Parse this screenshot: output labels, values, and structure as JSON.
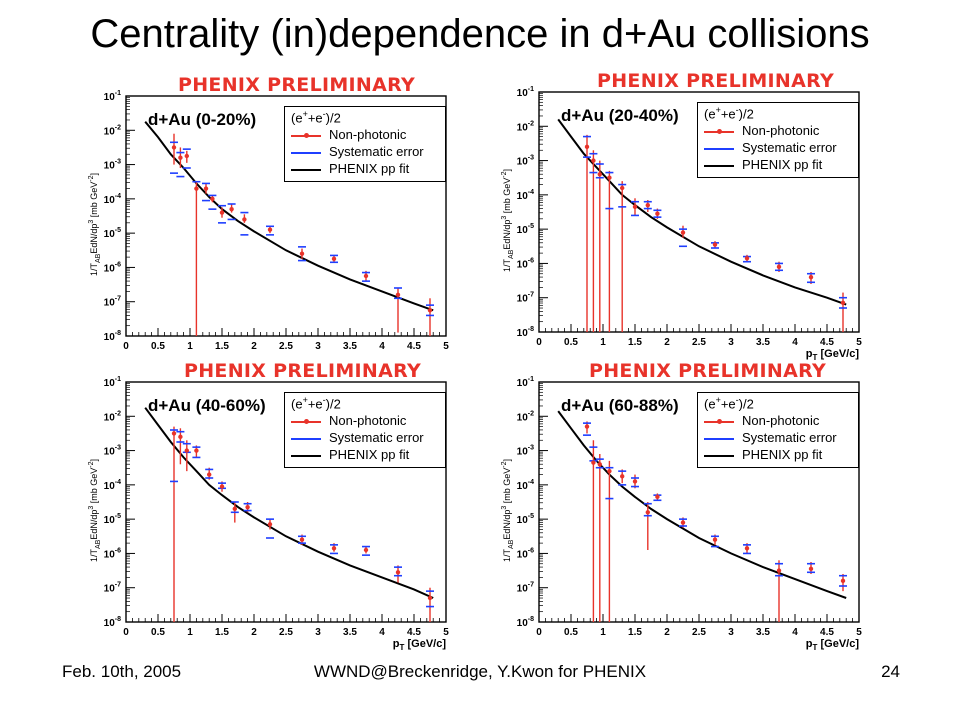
{
  "slide": {
    "title": "Centrality (in)dependence in d+Au collisions",
    "footer_left": "Feb. 10th, 2005",
    "footer_center": "WWND@Breckenridge, Y.Kwon for PHENIX",
    "footer_right": "24"
  },
  "colors": {
    "data": "#e8332a",
    "syst": "#1f3fff",
    "fit": "#000000",
    "prelim": "#e8332a"
  },
  "common": {
    "preliminary": "PHENIX PRELIMINARY",
    "ylabel": "1/T_AB EdN/dp^3 [mb GeV^-2]",
    "xlabel": "p_T [GeV/c]",
    "legend_header": "(e^+ +e^-)/2",
    "legend_items": [
      "Non-photonic",
      "Systematic error",
      "PHENIX pp fit"
    ]
  },
  "chart_data": [
    {
      "type": "scatter",
      "label": "d+Au (0-20%)",
      "xlim": [
        0,
        5
      ],
      "ylim_log10": [
        -8,
        -1
      ],
      "ylog": true,
      "grid": false,
      "x_ticks": [
        "0",
        "0.5",
        "1",
        "1.5",
        "2",
        "2.5",
        "3",
        "3.5",
        "4",
        "4.5",
        "5"
      ],
      "y_ticks": [
        "10^-8",
        "10^-7",
        "10^-6",
        "10^-5",
        "10^-4",
        "10^-3",
        "10^-2",
        "10^-1"
      ],
      "show_xlabel": false,
      "fit_log10": [
        [
          0.3,
          -1.75
        ],
        [
          0.5,
          -2.2
        ],
        [
          0.7,
          -2.7
        ],
        [
          0.9,
          -3.1
        ],
        [
          1.1,
          -3.55
        ],
        [
          1.3,
          -3.95
        ],
        [
          1.5,
          -4.3
        ],
        [
          1.75,
          -4.65
        ],
        [
          2.0,
          -4.95
        ],
        [
          2.5,
          -5.5
        ],
        [
          3.0,
          -5.95
        ],
        [
          3.5,
          -6.35
        ],
        [
          4.0,
          -6.7
        ],
        [
          4.5,
          -7.05
        ],
        [
          4.8,
          -7.25
        ]
      ],
      "points_log10": [
        {
          "x": 0.75,
          "y": -2.5,
          "lo": -3.0,
          "hi": -2.1,
          "slo": -3.25,
          "shi": -2.35
        },
        {
          "x": 0.85,
          "y": -2.8,
          "lo": -3.1,
          "hi": -2.5,
          "slo": -3.35,
          "shi": -2.65
        },
        {
          "x": 0.95,
          "y": -2.75,
          "lo": -2.95,
          "hi": -2.6,
          "slo": -3.1,
          "shi": -2.55
        },
        {
          "x": 1.1,
          "y": -3.7,
          "lo": -8.0,
          "hi": -3.5,
          "slo": -8.1,
          "shi": -3.5
        },
        {
          "x": 1.25,
          "y": -3.7,
          "lo": -3.85,
          "hi": -3.55,
          "slo": -4.05,
          "shi": -3.55
        },
        {
          "x": 1.35,
          "y": -4.0,
          "lo": -4.1,
          "hi": -3.9,
          "slo": -4.3,
          "shi": -3.9
        },
        {
          "x": 1.5,
          "y": -4.4,
          "lo": -4.55,
          "hi": -4.25,
          "slo": -4.7,
          "shi": -4.2
        },
        {
          "x": 1.65,
          "y": -4.3,
          "lo": -4.4,
          "hi": -4.15,
          "slo": -4.6,
          "shi": -4.15
        },
        {
          "x": 1.85,
          "y": -4.6,
          "lo": -4.7,
          "hi": -4.45,
          "slo": -5.05,
          "shi": -4.4
        },
        {
          "x": 2.25,
          "y": -4.9,
          "lo": -5.0,
          "hi": -4.8,
          "slo": -5.05,
          "shi": -4.8
        },
        {
          "x": 2.75,
          "y": -5.6,
          "lo": -5.75,
          "hi": -5.45,
          "slo": -5.8,
          "shi": -5.4
        },
        {
          "x": 3.25,
          "y": -5.75,
          "lo": -5.85,
          "hi": -5.65,
          "slo": -5.85,
          "shi": -5.65
        },
        {
          "x": 3.75,
          "y": -6.25,
          "lo": -6.4,
          "hi": -6.1,
          "slo": -6.4,
          "shi": -6.15
        },
        {
          "x": 4.25,
          "y": -6.8,
          "lo": -7.9,
          "hi": -6.6,
          "slo": -6.9,
          "shi": -6.6
        },
        {
          "x": 4.75,
          "y": -7.25,
          "lo": -8.0,
          "hi": -6.9,
          "slo": -7.4,
          "shi": -7.1
        }
      ]
    },
    {
      "type": "scatter",
      "label": "d+Au (20-40%)",
      "xlim": [
        0,
        5
      ],
      "ylim_log10": [
        -8,
        -1
      ],
      "ylog": true,
      "grid": false,
      "x_ticks": [
        "0",
        "0.5",
        "1",
        "1.5",
        "2",
        "2.5",
        "3",
        "3.5",
        "4",
        "4.5",
        "5"
      ],
      "y_ticks": [
        "10^-8",
        "10^-7",
        "10^-6",
        "10^-5",
        "10^-4",
        "10^-3",
        "10^-2",
        "10^-1"
      ],
      "show_xlabel": true,
      "fit_log10": [
        [
          0.3,
          -1.8
        ],
        [
          0.5,
          -2.3
        ],
        [
          0.7,
          -2.8
        ],
        [
          0.9,
          -3.2
        ],
        [
          1.1,
          -3.6
        ],
        [
          1.3,
          -4.0
        ],
        [
          1.5,
          -4.3
        ],
        [
          1.75,
          -4.65
        ],
        [
          2.0,
          -4.95
        ],
        [
          2.5,
          -5.5
        ],
        [
          3.0,
          -5.95
        ],
        [
          3.5,
          -6.35
        ],
        [
          4.0,
          -6.7
        ],
        [
          4.5,
          -7.0
        ],
        [
          4.8,
          -7.2
        ]
      ],
      "points_log10": [
        {
          "x": 0.75,
          "y": -2.6,
          "lo": -8.0,
          "hi": -2.25,
          "slo": -2.9,
          "shi": -2.3
        },
        {
          "x": 0.85,
          "y": -3.0,
          "lo": -8.0,
          "hi": -2.7,
          "slo": -3.35,
          "shi": -2.8
        },
        {
          "x": 0.95,
          "y": -3.4,
          "lo": -8.0,
          "hi": -3.0,
          "slo": -3.5,
          "shi": -3.1
        },
        {
          "x": 1.1,
          "y": -3.5,
          "lo": -8.0,
          "hi": -3.3,
          "slo": -4.4,
          "shi": -3.35
        },
        {
          "x": 1.3,
          "y": -3.8,
          "lo": -8.0,
          "hi": -3.6,
          "slo": -4.35,
          "shi": -3.7
        },
        {
          "x": 1.5,
          "y": -4.35,
          "lo": -4.6,
          "hi": -4.1,
          "slo": -4.6,
          "shi": -4.2
        },
        {
          "x": 1.7,
          "y": -4.3,
          "lo": -4.5,
          "hi": -4.15,
          "slo": -4.4,
          "shi": -4.2
        },
        {
          "x": 1.85,
          "y": -4.55,
          "lo": -4.7,
          "hi": -4.4,
          "slo": -4.65,
          "shi": -4.45
        },
        {
          "x": 2.25,
          "y": -5.1,
          "lo": -5.25,
          "hi": -4.9,
          "slo": -5.5,
          "shi": -5.0
        },
        {
          "x": 2.75,
          "y": -5.45,
          "lo": -5.55,
          "hi": -5.35,
          "slo": -5.55,
          "shi": -5.4
        },
        {
          "x": 3.25,
          "y": -5.85,
          "lo": -5.95,
          "hi": -5.75,
          "slo": -5.95,
          "shi": -5.8
        },
        {
          "x": 3.75,
          "y": -6.1,
          "lo": -6.25,
          "hi": -5.95,
          "slo": -6.2,
          "shi": -6.0
        },
        {
          "x": 4.25,
          "y": -6.4,
          "lo": -6.6,
          "hi": -6.25,
          "slo": -6.55,
          "shi": -6.3
        },
        {
          "x": 4.75,
          "y": -7.15,
          "lo": -8.0,
          "hi": -6.85,
          "slo": -7.3,
          "shi": -7.0
        }
      ]
    },
    {
      "type": "scatter",
      "label": "d+Au (40-60%)",
      "xlim": [
        0,
        5
      ],
      "ylim_log10": [
        -8,
        -1
      ],
      "ylog": true,
      "grid": false,
      "x_ticks": [
        "0",
        "0.5",
        "1",
        "1.5",
        "2",
        "2.5",
        "3",
        "3.5",
        "4",
        "4.5",
        "5"
      ],
      "y_ticks": [
        "10^-8",
        "10^-7",
        "10^-6",
        "10^-5",
        "10^-4",
        "10^-3",
        "10^-2",
        "10^-1"
      ],
      "show_xlabel": true,
      "fit_log10": [
        [
          0.3,
          -1.75
        ],
        [
          0.5,
          -2.25
        ],
        [
          0.7,
          -2.75
        ],
        [
          0.9,
          -3.2
        ],
        [
          1.1,
          -3.6
        ],
        [
          1.3,
          -4.0
        ],
        [
          1.5,
          -4.3
        ],
        [
          1.75,
          -4.65
        ],
        [
          2.0,
          -4.95
        ],
        [
          2.5,
          -5.5
        ],
        [
          3.0,
          -5.95
        ],
        [
          3.5,
          -6.35
        ],
        [
          4.0,
          -6.7
        ],
        [
          4.5,
          -7.05
        ],
        [
          4.8,
          -7.3
        ]
      ],
      "points_log10": [
        {
          "x": 0.75,
          "y": -2.5,
          "lo": -8.0,
          "hi": -2.3,
          "slo": -3.9,
          "shi": -2.4
        },
        {
          "x": 0.85,
          "y": -2.6,
          "lo": -3.4,
          "hi": -2.35,
          "slo": -2.75,
          "shi": -2.45
        },
        {
          "x": 0.95,
          "y": -3.0,
          "lo": -3.6,
          "hi": -2.7,
          "slo": -3.05,
          "shi": -2.8
        },
        {
          "x": 1.1,
          "y": -3.0,
          "lo": -3.2,
          "hi": -2.85,
          "slo": -3.2,
          "shi": -2.9
        },
        {
          "x": 1.3,
          "y": -3.7,
          "lo": -3.85,
          "hi": -3.5,
          "slo": -3.8,
          "shi": -3.55
        },
        {
          "x": 1.5,
          "y": -4.05,
          "lo": -4.2,
          "hi": -3.9,
          "slo": -4.1,
          "shi": -3.95
        },
        {
          "x": 1.7,
          "y": -4.7,
          "lo": -5.1,
          "hi": -4.5,
          "slo": -4.8,
          "shi": -4.5
        },
        {
          "x": 1.9,
          "y": -4.65,
          "lo": -4.8,
          "hi": -4.5,
          "slo": -4.75,
          "shi": -4.55
        },
        {
          "x": 2.25,
          "y": -5.15,
          "lo": -5.3,
          "hi": -5.0,
          "slo": -5.55,
          "shi": -5.0
        },
        {
          "x": 2.75,
          "y": -5.6,
          "lo": -5.75,
          "hi": -5.45,
          "slo": -5.7,
          "shi": -5.5
        },
        {
          "x": 3.25,
          "y": -5.85,
          "lo": -5.95,
          "hi": -5.7,
          "slo": -6.0,
          "shi": -5.75
        },
        {
          "x": 3.75,
          "y": -5.9,
          "lo": -6.0,
          "hi": -5.8,
          "slo": -6.05,
          "shi": -5.8
        },
        {
          "x": 4.25,
          "y": -6.55,
          "lo": -6.85,
          "hi": -6.35,
          "slo": -6.65,
          "shi": -6.4
        },
        {
          "x": 4.75,
          "y": -7.3,
          "lo": -8.0,
          "hi": -7.0,
          "slo": -7.55,
          "shi": -7.1
        }
      ]
    },
    {
      "type": "scatter",
      "label": "d+Au (60-88%)",
      "xlim": [
        0,
        5
      ],
      "ylim_log10": [
        -8,
        -1
      ],
      "ylog": true,
      "grid": false,
      "x_ticks": [
        "0",
        "0.5",
        "1",
        "1.5",
        "2",
        "2.5",
        "3",
        "3.5",
        "4",
        "4.5",
        "5"
      ],
      "y_ticks": [
        "10^-8",
        "10^-7",
        "10^-6",
        "10^-5",
        "10^-4",
        "10^-3",
        "10^-2",
        "10^-1"
      ],
      "show_xlabel": true,
      "fit_log10": [
        [
          0.3,
          -1.85
        ],
        [
          0.5,
          -2.35
        ],
        [
          0.7,
          -2.85
        ],
        [
          0.9,
          -3.3
        ],
        [
          1.1,
          -3.7
        ],
        [
          1.3,
          -4.05
        ],
        [
          1.5,
          -4.35
        ],
        [
          1.75,
          -4.7
        ],
        [
          2.0,
          -5.0
        ],
        [
          2.5,
          -5.55
        ],
        [
          3.0,
          -6.0
        ],
        [
          3.5,
          -6.4
        ],
        [
          4.0,
          -6.75
        ],
        [
          4.5,
          -7.1
        ],
        [
          4.8,
          -7.3
        ]
      ],
      "points_log10": [
        {
          "x": 0.75,
          "y": -2.3,
          "lo": -2.5,
          "hi": -2.15,
          "slo": -2.55,
          "shi": -2.2
        },
        {
          "x": 0.85,
          "y": -3.35,
          "lo": -8.0,
          "hi": -2.7,
          "slo": -3.3,
          "shi": -2.9
        },
        {
          "x": 0.95,
          "y": -3.4,
          "lo": -8.0,
          "hi": -3.1,
          "slo": -3.5,
          "shi": -3.25
        },
        {
          "x": 1.1,
          "y": -3.6,
          "lo": -8.0,
          "hi": -3.3,
          "slo": -4.4,
          "shi": -3.5
        },
        {
          "x": 1.3,
          "y": -3.75,
          "lo": -3.95,
          "hi": -3.55,
          "slo": -4.0,
          "shi": -3.6
        },
        {
          "x": 1.5,
          "y": -3.9,
          "lo": -4.1,
          "hi": -3.7,
          "slo": -4.05,
          "shi": -3.8
        },
        {
          "x": 1.7,
          "y": -4.8,
          "lo": -5.9,
          "hi": -4.5,
          "slo": -4.9,
          "shi": -4.55
        },
        {
          "x": 1.85,
          "y": -4.35,
          "lo": -4.45,
          "hi": -4.25,
          "slo": -4.45,
          "shi": -4.3
        },
        {
          "x": 2.25,
          "y": -5.1,
          "lo": -5.25,
          "hi": -4.95,
          "slo": -5.2,
          "shi": -5.0
        },
        {
          "x": 2.75,
          "y": -5.6,
          "lo": -5.75,
          "hi": -5.45,
          "slo": -5.8,
          "shi": -5.5
        },
        {
          "x": 3.25,
          "y": -5.85,
          "lo": -6.0,
          "hi": -5.7,
          "slo": -6.0,
          "shi": -5.75
        },
        {
          "x": 3.75,
          "y": -6.5,
          "lo": -8.0,
          "hi": -6.2,
          "slo": -6.65,
          "shi": -6.3
        },
        {
          "x": 4.25,
          "y": -6.45,
          "lo": -6.6,
          "hi": -6.25,
          "slo": -6.55,
          "shi": -6.3
        },
        {
          "x": 4.75,
          "y": -6.8,
          "lo": -7.1,
          "hi": -6.6,
          "slo": -6.95,
          "shi": -6.65
        }
      ]
    }
  ]
}
